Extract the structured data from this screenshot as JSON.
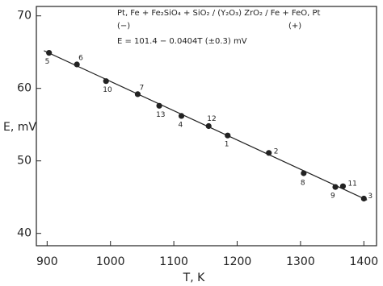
{
  "chart_data": {
    "type": "scatter",
    "annotations": [
      "Pt, Fe + Fe₂SiO₄ + SiO₂ / (Y₂O₃) ZrO₂ / Fe + FeO, Pt",
      "(−)",
      "(+)",
      "E = 101.4 − 0.0404T (±0.3) mV"
    ],
    "x_label": "T,  K",
    "y_label": "E, mV",
    "x": [
      903,
      947,
      993,
      1043,
      1077,
      1112,
      1155,
      1185,
      1250,
      1305,
      1355,
      1367,
      1400
    ],
    "values": [
      64.9,
      63.3,
      61.0,
      59.2,
      57.6,
      56.2,
      54.8,
      53.5,
      51.1,
      48.3,
      46.4,
      46.5,
      44.8
    ],
    "point_labels": [
      "5",
      "6",
      "10",
      "7",
      "13",
      "4",
      "12",
      "1",
      "2",
      "8",
      "9",
      "11",
      "3"
    ],
    "fit_line": {
      "x": [
        895,
        1405
      ],
      "values": [
        65.2,
        44.6
      ]
    },
    "color": "#222222",
    "xlim": [
      883,
      1420
    ],
    "ylim": [
      38.3,
      71.3
    ],
    "xticks": [
      900,
      1000,
      1100,
      1200,
      1300,
      1400
    ],
    "yticks": [
      40,
      50,
      60,
      70
    ]
  }
}
